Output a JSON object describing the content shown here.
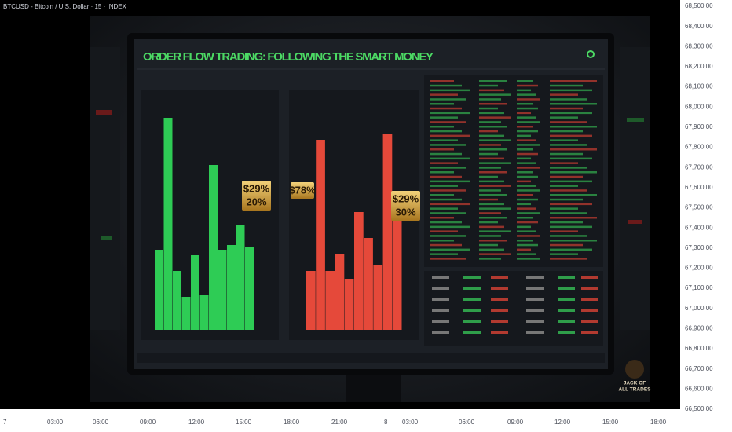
{
  "header": {
    "symbol_title": "BTCUSD - Bitcoin / U.S. Dollar · 15 · INDEX"
  },
  "price_axis": {
    "labels": [
      "68,500.00",
      "68,400.00",
      "68,300.00",
      "68,200.00",
      "68,100.00",
      "68,000.00",
      "67,900.00",
      "67,800.00",
      "67,700.00",
      "67,600.00",
      "67,500.00",
      "67,400.00",
      "67,300.00",
      "67,200.00",
      "67,100.00",
      "67,000.00",
      "66,900.00",
      "66,800.00",
      "66,700.00",
      "66,600.00",
      "66,500.00"
    ]
  },
  "time_axis": {
    "labels": [
      "7",
      "03:00",
      "06:00",
      "09:00",
      "12:00",
      "15:00",
      "18:00",
      "21:00",
      "8",
      "03:00",
      "06:00",
      "09:00",
      "12:00",
      "15:00",
      "18:00"
    ]
  },
  "image": {
    "title": "ORDER FLOW TRADING: FOLLOWING THE SMART MONEY",
    "callouts": [
      {
        "lines": [
          "$29%",
          "20%"
        ]
      },
      {
        "lines": [
          "$78%"
        ]
      },
      {
        "lines": [
          "$29%",
          "30%"
        ]
      }
    ],
    "logo": [
      "JACK OF",
      "ALL TRADES"
    ]
  }
}
